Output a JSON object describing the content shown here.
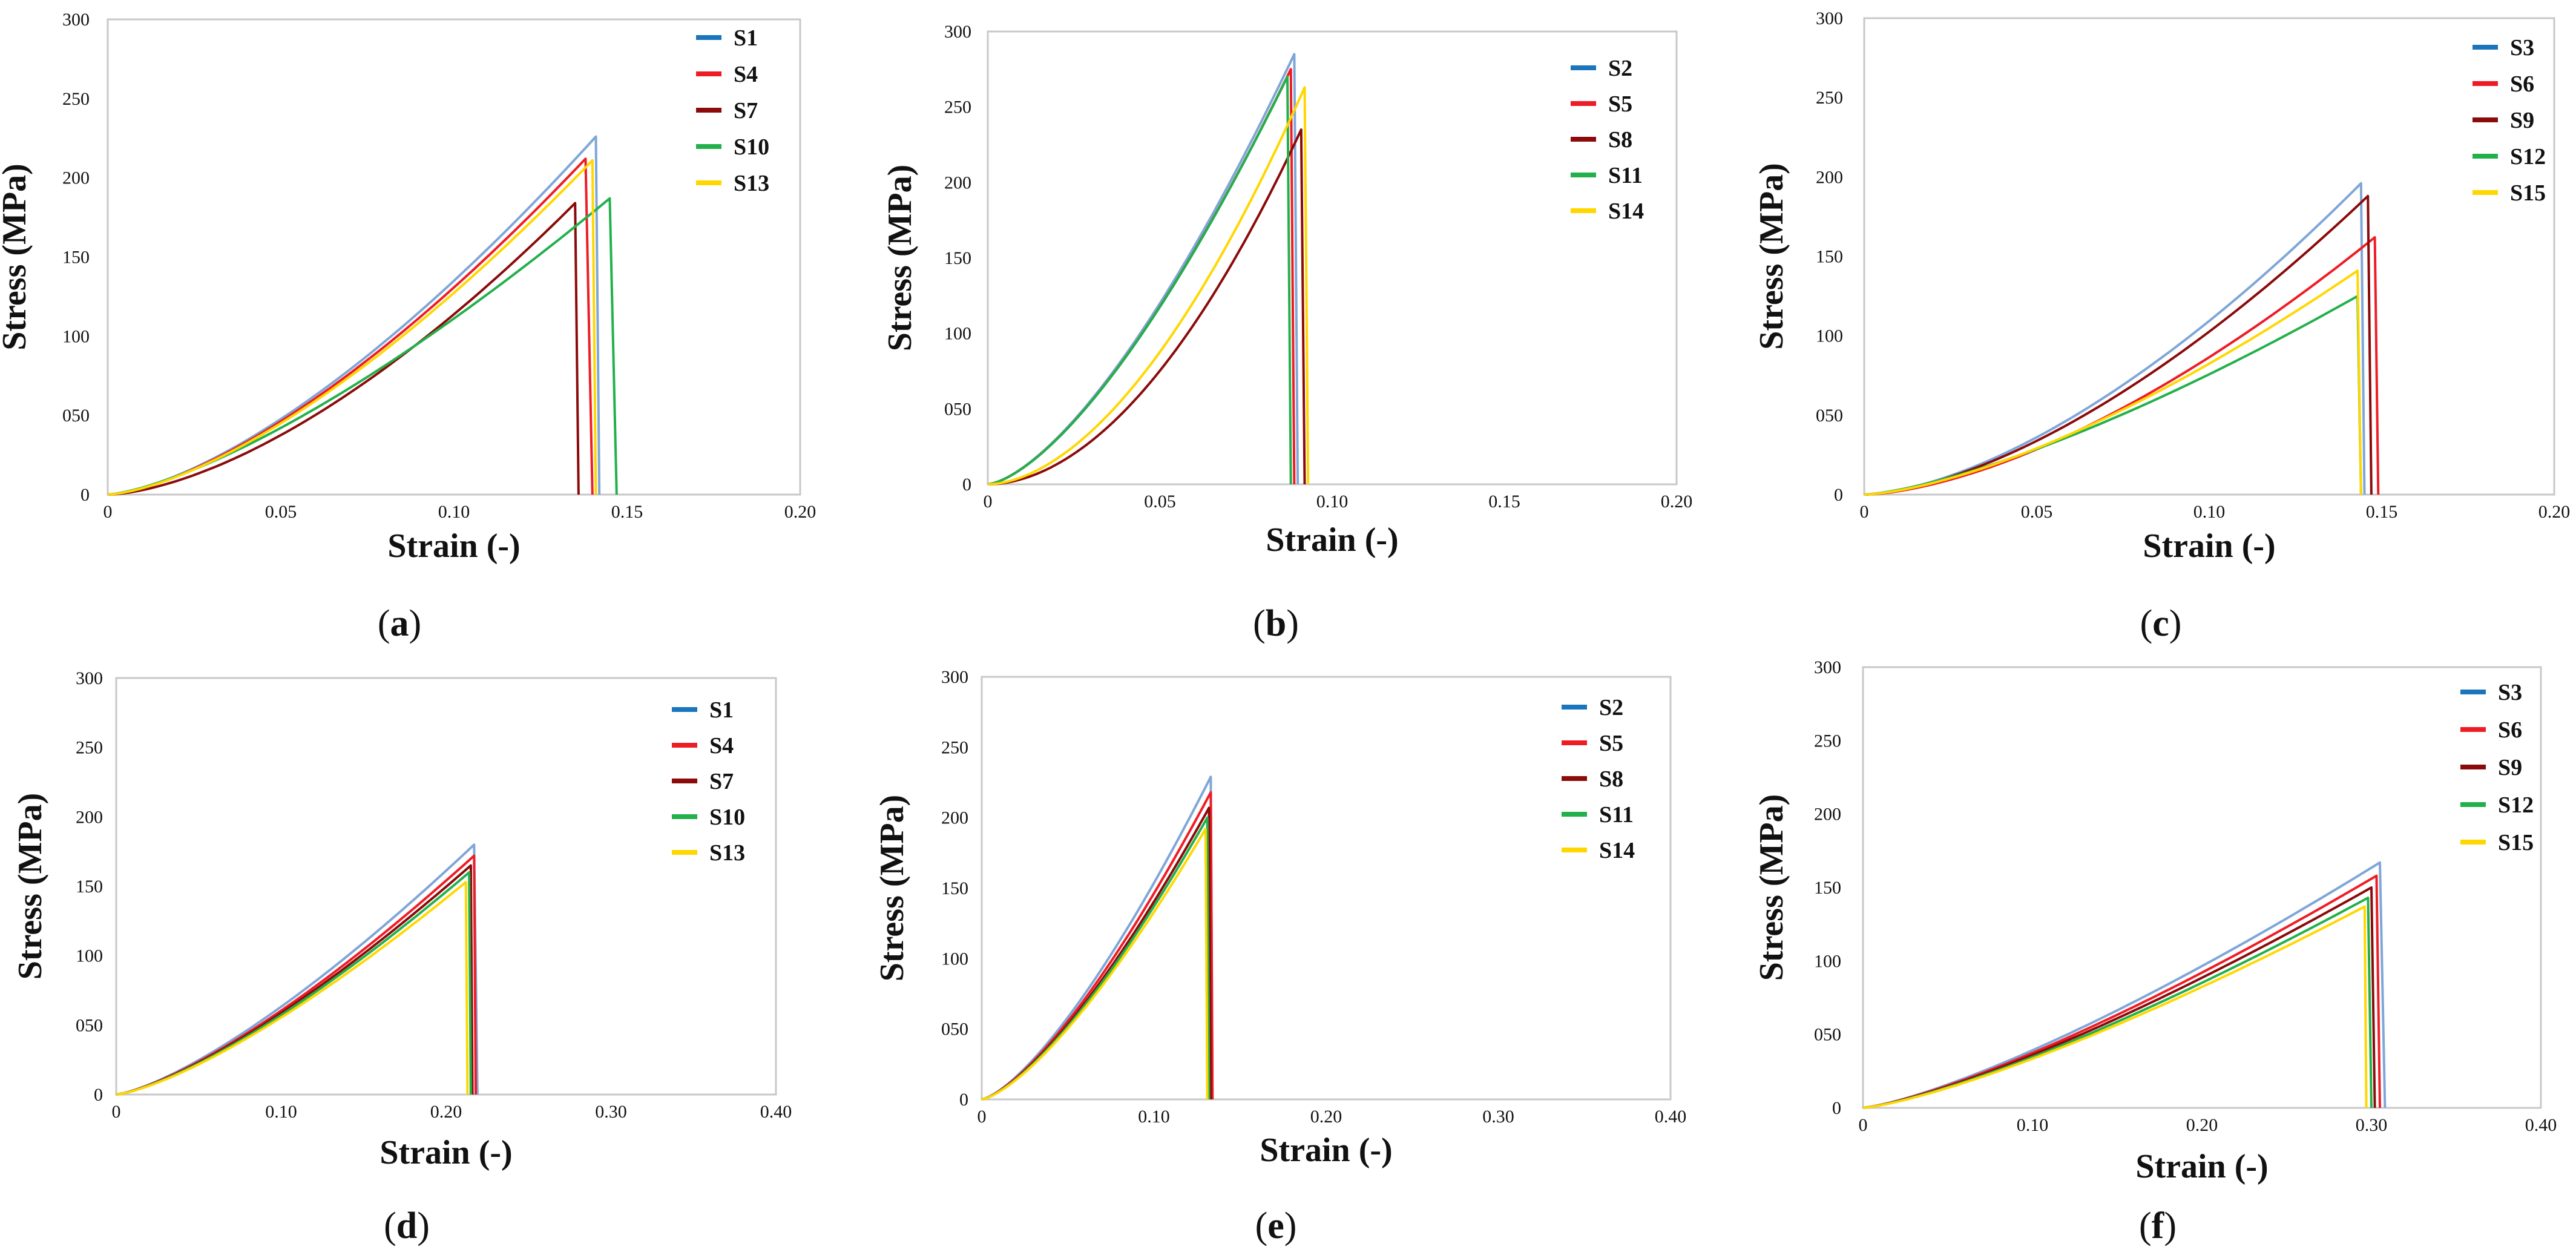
{
  "chart_data": [
    {
      "id": "a",
      "panel_label": "a",
      "type": "line",
      "xlabel": "Strain (-)",
      "ylabel": "Stress (MPa)",
      "xlim": [
        0,
        0.2
      ],
      "ylim": [
        0,
        300
      ],
      "xticks": [
        "0",
        "0.05",
        "0.10",
        "0.15",
        "0.20"
      ],
      "xtick_values": [
        0,
        0.05,
        0.1,
        0.15,
        0.2
      ],
      "yticks": [
        "0",
        "050",
        "100",
        "150",
        "200",
        "250",
        "300"
      ],
      "ytick_values": [
        0,
        50,
        100,
        150,
        200,
        250,
        300
      ],
      "legend_position": "top-right",
      "series": [
        {
          "name": "S1",
          "legend_color": "#1b75bc",
          "line_color": "#7ea6d8",
          "peak_strain": 0.141,
          "peak_stress": 226,
          "fail_strain": 0.142,
          "shape": 1.5
        },
        {
          "name": "S4",
          "legend_color": "#ee1c25",
          "line_color": "#ee1c25",
          "peak_strain": 0.138,
          "peak_stress": 212,
          "fail_strain": 0.14,
          "shape": 1.5
        },
        {
          "name": "S7",
          "legend_color": "#8b0a0a",
          "line_color": "#8b0a0a",
          "peak_strain": 0.135,
          "peak_stress": 184,
          "fail_strain": 0.136,
          "shape": 1.6
        },
        {
          "name": "S10",
          "legend_color": "#22b04b",
          "line_color": "#22b04b",
          "peak_strain": 0.145,
          "peak_stress": 187,
          "fail_strain": 0.147,
          "shape": 1.4
        },
        {
          "name": "S13",
          "legend_color": "#ffd700",
          "line_color": "#ffd700",
          "peak_strain": 0.14,
          "peak_stress": 211,
          "fail_strain": 0.141,
          "shape": 1.5
        }
      ]
    },
    {
      "id": "b",
      "panel_label": "b",
      "type": "line",
      "xlabel": "Strain (-)",
      "ylabel": "Stress (MPa)",
      "xlim": [
        0,
        0.2
      ],
      "ylim": [
        0,
        300
      ],
      "xticks": [
        "0",
        "0.05",
        "0.10",
        "0.15",
        "0.20"
      ],
      "xtick_values": [
        0,
        0.05,
        0.1,
        0.15,
        0.2
      ],
      "yticks": [
        "0",
        "050",
        "100",
        "150",
        "200",
        "250",
        "300"
      ],
      "ytick_values": [
        0,
        50,
        100,
        150,
        200,
        250,
        300
      ],
      "legend_position": "top-right",
      "series": [
        {
          "name": "S2",
          "legend_color": "#1b75bc",
          "line_color": "#7ea6d8",
          "peak_strain": 0.089,
          "peak_stress": 285,
          "fail_strain": 0.09,
          "shape": 1.5
        },
        {
          "name": "S5",
          "legend_color": "#ee1c25",
          "line_color": "#ee1c25",
          "peak_strain": 0.088,
          "peak_stress": 275,
          "fail_strain": 0.089,
          "shape": 1.5
        },
        {
          "name": "S8",
          "legend_color": "#8b0a0a",
          "line_color": "#8b0a0a",
          "peak_strain": 0.091,
          "peak_stress": 235,
          "fail_strain": 0.092,
          "shape": 1.9
        },
        {
          "name": "S11",
          "legend_color": "#22b04b",
          "line_color": "#22b04b",
          "peak_strain": 0.087,
          "peak_stress": 270,
          "fail_strain": 0.088,
          "shape": 1.5
        },
        {
          "name": "S14",
          "legend_color": "#ffd700",
          "line_color": "#ffd700",
          "peak_strain": 0.092,
          "peak_stress": 263,
          "fail_strain": 0.093,
          "shape": 1.8
        }
      ]
    },
    {
      "id": "c",
      "panel_label": "c",
      "type": "line",
      "xlabel": "Strain (-)",
      "ylabel": "Stress (MPa)",
      "xlim": [
        0,
        0.2
      ],
      "ylim": [
        0,
        300
      ],
      "xticks": [
        "0",
        "0.05",
        "0.10",
        "0.15",
        "0.20"
      ],
      "xtick_values": [
        0,
        0.05,
        0.1,
        0.15,
        0.2
      ],
      "yticks": [
        "0",
        "050",
        "100",
        "150",
        "200",
        "250",
        "300"
      ],
      "ytick_values": [
        0,
        50,
        100,
        150,
        200,
        250,
        300
      ],
      "legend_position": "top-right",
      "series": [
        {
          "name": "S3",
          "legend_color": "#1b75bc",
          "line_color": "#7ea6d8",
          "peak_strain": 0.144,
          "peak_stress": 196,
          "fail_strain": 0.145,
          "shape": 1.6
        },
        {
          "name": "S6",
          "legend_color": "#ee1c25",
          "line_color": "#ee1c25",
          "peak_strain": 0.148,
          "peak_stress": 162,
          "fail_strain": 0.149,
          "shape": 1.6
        },
        {
          "name": "S9",
          "legend_color": "#8b0a0a",
          "line_color": "#8b0a0a",
          "peak_strain": 0.146,
          "peak_stress": 188,
          "fail_strain": 0.147,
          "shape": 1.6
        },
        {
          "name": "S12",
          "legend_color": "#22b04b",
          "line_color": "#22b04b",
          "peak_strain": 0.143,
          "peak_stress": 125,
          "fail_strain": 0.144,
          "shape": 1.4
        },
        {
          "name": "S15",
          "legend_color": "#ffd700",
          "line_color": "#ffd700",
          "peak_strain": 0.143,
          "peak_stress": 141,
          "fail_strain": 0.144,
          "shape": 1.5
        }
      ]
    },
    {
      "id": "d",
      "panel_label": "d",
      "type": "line",
      "xlabel": "Strain (-)",
      "ylabel": "Stress (MPa)",
      "xlim": [
        0,
        0.4
      ],
      "ylim": [
        0,
        300
      ],
      "xticks": [
        "0",
        "0.10",
        "0.20",
        "0.30",
        "0.40"
      ],
      "xtick_values": [
        0,
        0.1,
        0.2,
        0.3,
        0.4
      ],
      "yticks": [
        "0",
        "050",
        "100",
        "150",
        "200",
        "250",
        "300"
      ],
      "ytick_values": [
        0,
        50,
        100,
        150,
        200,
        250,
        300
      ],
      "legend_position": "top-right",
      "series": [
        {
          "name": "S1",
          "legend_color": "#1b75bc",
          "line_color": "#7ea6d8",
          "peak_strain": 0.217,
          "peak_stress": 180,
          "fail_strain": 0.219,
          "shape": 1.35
        },
        {
          "name": "S4",
          "legend_color": "#ee1c25",
          "line_color": "#ee1c25",
          "peak_strain": 0.217,
          "peak_stress": 172,
          "fail_strain": 0.218,
          "shape": 1.35
        },
        {
          "name": "S7",
          "legend_color": "#8b0a0a",
          "line_color": "#8b0a0a",
          "peak_strain": 0.215,
          "peak_stress": 165,
          "fail_strain": 0.216,
          "shape": 1.35
        },
        {
          "name": "S10",
          "legend_color": "#22b04b",
          "line_color": "#22b04b",
          "peak_strain": 0.214,
          "peak_stress": 160,
          "fail_strain": 0.215,
          "shape": 1.35
        },
        {
          "name": "S13",
          "legend_color": "#ffd700",
          "line_color": "#ffd700",
          "peak_strain": 0.212,
          "peak_stress": 153,
          "fail_strain": 0.213,
          "shape": 1.35
        }
      ]
    },
    {
      "id": "e",
      "panel_label": "e",
      "type": "line",
      "xlabel": "Strain (-)",
      "ylabel": "Stress (MPa)",
      "xlim": [
        0,
        0.4
      ],
      "ylim": [
        0,
        300
      ],
      "xticks": [
        "0",
        "0.10",
        "0.20",
        "0.30",
        "0.40"
      ],
      "xtick_values": [
        0,
        0.1,
        0.2,
        0.3,
        0.4
      ],
      "yticks": [
        "0",
        "050",
        "100",
        "150",
        "200",
        "250",
        "300"
      ],
      "ytick_values": [
        0,
        50,
        100,
        150,
        200,
        250,
        300
      ],
      "legend_position": "top-right",
      "series": [
        {
          "name": "S2",
          "legend_color": "#1b75bc",
          "line_color": "#7ea6d8",
          "peak_strain": 0.133,
          "peak_stress": 229,
          "fail_strain": 0.134,
          "shape": 1.4
        },
        {
          "name": "S5",
          "legend_color": "#ee1c25",
          "line_color": "#ee1c25",
          "peak_strain": 0.133,
          "peak_stress": 218,
          "fail_strain": 0.134,
          "shape": 1.4
        },
        {
          "name": "S8",
          "legend_color": "#8b0a0a",
          "line_color": "#8b0a0a",
          "peak_strain": 0.132,
          "peak_stress": 207,
          "fail_strain": 0.133,
          "shape": 1.4
        },
        {
          "name": "S11",
          "legend_color": "#22b04b",
          "line_color": "#22b04b",
          "peak_strain": 0.131,
          "peak_stress": 200,
          "fail_strain": 0.132,
          "shape": 1.4
        },
        {
          "name": "S14",
          "legend_color": "#ffd700",
          "line_color": "#ffd700",
          "peak_strain": 0.13,
          "peak_stress": 192,
          "fail_strain": 0.131,
          "shape": 1.4
        }
      ]
    },
    {
      "id": "f",
      "panel_label": "f",
      "type": "line",
      "xlabel": "Strain (-)",
      "ylabel": "Stress (MPa)",
      "xlim": [
        0,
        0.4
      ],
      "ylim": [
        0,
        300
      ],
      "xticks": [
        "0",
        "0.10",
        "0.20",
        "0.30",
        "0.40"
      ],
      "xtick_values": [
        0,
        0.1,
        0.2,
        0.3,
        0.4
      ],
      "yticks": [
        "0",
        "050",
        "100",
        "150",
        "200",
        "250",
        "300"
      ],
      "ytick_values": [
        0,
        50,
        100,
        150,
        200,
        250,
        300
      ],
      "legend_position": "top-right",
      "series": [
        {
          "name": "S3",
          "legend_color": "#1b75bc",
          "line_color": "#7ea6d8",
          "peak_strain": 0.305,
          "peak_stress": 167,
          "fail_strain": 0.308,
          "shape": 1.3
        },
        {
          "name": "S6",
          "legend_color": "#ee1c25",
          "line_color": "#ee1c25",
          "peak_strain": 0.303,
          "peak_stress": 158,
          "fail_strain": 0.305,
          "shape": 1.3
        },
        {
          "name": "S9",
          "legend_color": "#8b0a0a",
          "line_color": "#8b0a0a",
          "peak_strain": 0.3,
          "peak_stress": 150,
          "fail_strain": 0.302,
          "shape": 1.3
        },
        {
          "name": "S12",
          "legend_color": "#22b04b",
          "line_color": "#22b04b",
          "peak_strain": 0.298,
          "peak_stress": 143,
          "fail_strain": 0.3,
          "shape": 1.3
        },
        {
          "name": "S15",
          "legend_color": "#ffd700",
          "line_color": "#ffd700",
          "peak_strain": 0.296,
          "peak_stress": 137,
          "fail_strain": 0.297,
          "shape": 1.3
        }
      ]
    }
  ]
}
